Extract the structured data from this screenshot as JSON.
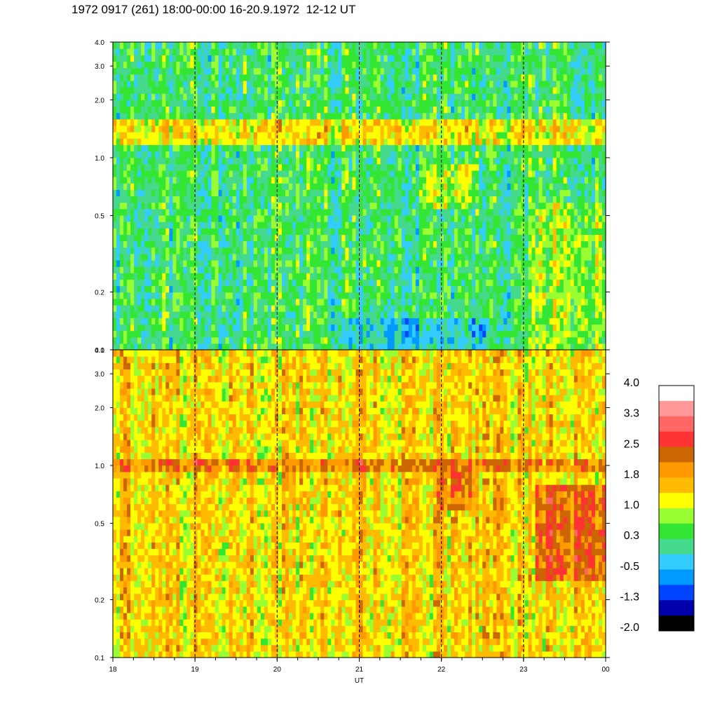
{
  "header": {
    "title": "1972 0917 (261) 18:00-00:00 16-20.9.1972  12-12 UT"
  },
  "chart_data": {
    "type": "heatmap",
    "title": "1972 0917 (261) 18:00-00:00 16-20.9.1972  12-12 UT",
    "xlabel": "UT",
    "x_ticks": [
      "18",
      "19",
      "20",
      "21",
      "22",
      "23",
      "00"
    ],
    "x_range": [
      18,
      24
    ],
    "y_scale": "log",
    "y_range": [
      0.1,
      4.0
    ],
    "y_ticks": [
      "0.1",
      "0.2",
      "0.5",
      "1.0",
      "2.0",
      "3.0",
      "4.0"
    ],
    "vertical_dashed_lines_at": [
      19,
      20,
      21,
      22,
      23
    ],
    "panels": [
      {
        "position": "top",
        "dominant_level": 0.3,
        "band_level": 1.0,
        "band_freq": [
          1.2,
          1.6
        ]
      },
      {
        "position": "bottom",
        "dominant_level": 1.4,
        "band_level": 1.8,
        "band_freq": [
          0.9,
          1.1
        ]
      }
    ],
    "colorbar": {
      "labels": [
        "4.0",
        "3.3",
        "2.5",
        "1.8",
        "1.0",
        "0.3",
        "-0.5",
        "-1.3",
        "-2.0"
      ],
      "levels": [
        {
          "min": 3.7,
          "color": "#ffffff"
        },
        {
          "min": 3.3,
          "color": "#ff9999"
        },
        {
          "min": 2.9,
          "color": "#ff6666"
        },
        {
          "min": 2.5,
          "color": "#ff3333"
        },
        {
          "min": 2.1,
          "color": "#cc6600"
        },
        {
          "min": 1.8,
          "color": "#ff9900"
        },
        {
          "min": 1.4,
          "color": "#ffbb00"
        },
        {
          "min": 1.0,
          "color": "#ffff00"
        },
        {
          "min": 0.7,
          "color": "#99ff33"
        },
        {
          "min": 0.3,
          "color": "#33e633"
        },
        {
          "min": -0.1,
          "color": "#44d98c"
        },
        {
          "min": -0.5,
          "color": "#33ccff"
        },
        {
          "min": -0.9,
          "color": "#0099ff"
        },
        {
          "min": -1.3,
          "color": "#0044ff"
        },
        {
          "min": -1.7,
          "color": "#0000aa"
        },
        {
          "min": -2.1,
          "color": "#000000"
        }
      ]
    }
  }
}
